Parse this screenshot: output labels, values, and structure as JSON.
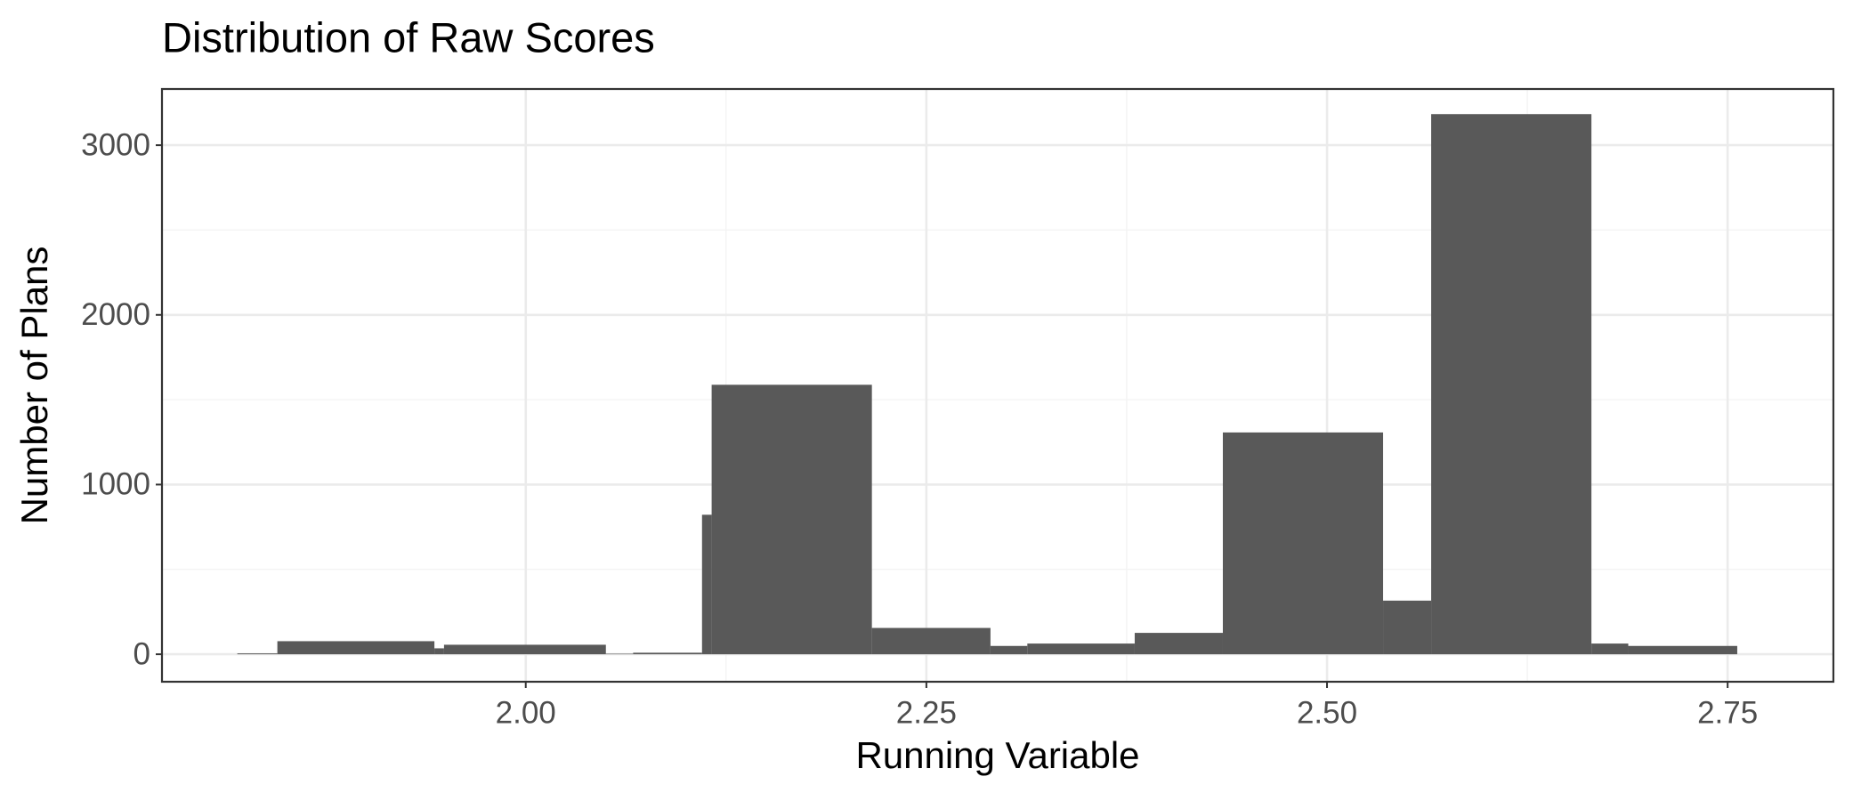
{
  "chart_data": {
    "type": "histogram",
    "title": "Distribution of Raw Scores",
    "x_label": "Running Variable",
    "y_label": "Number of Plans",
    "bins": [
      1.82,
      1.845,
      1.943,
      1.949,
      2.05,
      2.067,
      2.11,
      2.116,
      2.216,
      2.29,
      2.313,
      2.38,
      2.435,
      2.535,
      2.565,
      2.665,
      2.688,
      2.756
    ],
    "values": [
      5,
      77,
      35,
      56,
      3,
      9,
      822,
      1588,
      155,
      49,
      63,
      126,
      1307,
      316,
      3183,
      63,
      49
    ],
    "color": "#595959",
    "xlim": [
      1.773,
      2.816
    ],
    "ylim": [
      -162,
      3331
    ],
    "xticks": [
      {
        "value": 2.0,
        "label": "2.00"
      },
      {
        "value": 2.25,
        "label": "2.25"
      },
      {
        "value": 2.5,
        "label": "2.50"
      },
      {
        "value": 2.75,
        "label": "2.75"
      }
    ],
    "yticks": [
      0,
      1000,
      2000,
      3000
    ],
    "grid": true
  }
}
